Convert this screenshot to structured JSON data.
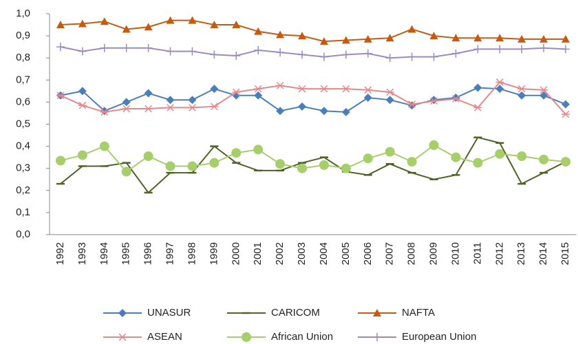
{
  "chart_data": {
    "type": "line",
    "categories": [
      "1992",
      "1993",
      "1994",
      "1995",
      "1996",
      "1997",
      "1998",
      "1999",
      "2000",
      "2001",
      "2002",
      "2003",
      "2004",
      "2005",
      "2006",
      "2007",
      "2008",
      "2009",
      "2010",
      "2011",
      "2012",
      "2013",
      "2014",
      "2015"
    ],
    "ylim": [
      0,
      1
    ],
    "yticks": [
      {
        "value": 0,
        "label": "0,0"
      },
      {
        "value": 0.1,
        "label": "0,1"
      },
      {
        "value": 0.2,
        "label": "0,2"
      },
      {
        "value": 0.3,
        "label": "0,3"
      },
      {
        "value": 0.4,
        "label": "0,4"
      },
      {
        "value": 0.5,
        "label": "0,5"
      },
      {
        "value": 0.6,
        "label": "0,6"
      },
      {
        "value": 0.7,
        "label": "0,7"
      },
      {
        "value": 0.8,
        "label": "0,8"
      },
      {
        "value": 0.9,
        "label": "0,9"
      },
      {
        "value": 1,
        "label": "1,0"
      }
    ],
    "legend": "bottom",
    "series": [
      {
        "name": "UNASUR",
        "color": "#4a7ebb",
        "marker": "diamond",
        "values": [
          0.63,
          0.65,
          0.56,
          0.6,
          0.64,
          0.61,
          0.61,
          0.66,
          0.63,
          0.63,
          0.56,
          0.58,
          0.56,
          0.555,
          0.62,
          0.61,
          0.585,
          0.61,
          0.62,
          0.665,
          0.66,
          0.63,
          0.63,
          0.59
        ]
      },
      {
        "name": "CARICOM",
        "color": "#4f6228",
        "marker": "dash",
        "values": [
          0.23,
          0.31,
          0.31,
          0.325,
          0.19,
          0.28,
          0.28,
          0.4,
          0.325,
          0.29,
          0.29,
          0.325,
          0.35,
          0.285,
          0.27,
          0.32,
          0.28,
          0.25,
          0.27,
          0.44,
          0.415,
          0.23,
          0.28,
          0.33
        ]
      },
      {
        "name": "NAFTA",
        "color": "#c55a11",
        "marker": "triangle",
        "values": [
          0.95,
          0.955,
          0.965,
          0.93,
          0.94,
          0.97,
          0.97,
          0.95,
          0.95,
          0.92,
          0.905,
          0.9,
          0.875,
          0.88,
          0.885,
          0.89,
          0.93,
          0.9,
          0.89,
          0.89,
          0.89,
          0.885,
          0.885,
          0.885
        ]
      },
      {
        "name": "ASEAN",
        "color": "#e6888a",
        "marker": "star",
        "values": [
          0.63,
          0.585,
          0.555,
          0.57,
          0.57,
          0.575,
          0.575,
          0.58,
          0.645,
          0.66,
          0.675,
          0.66,
          0.66,
          0.66,
          0.655,
          0.645,
          0.59,
          0.605,
          0.615,
          0.575,
          0.69,
          0.66,
          0.655,
          0.545
        ]
      },
      {
        "name": "African Union",
        "color": "#a6ce6b",
        "marker": "circle",
        "values": [
          0.335,
          0.36,
          0.4,
          0.285,
          0.355,
          0.31,
          0.31,
          0.325,
          0.37,
          0.385,
          0.32,
          0.3,
          0.315,
          0.3,
          0.345,
          0.375,
          0.33,
          0.405,
          0.35,
          0.325,
          0.365,
          0.355,
          0.34,
          0.33
        ]
      },
      {
        "name": "European Union",
        "color": "#9b8ac4",
        "marker": "plus",
        "values": [
          0.85,
          0.83,
          0.845,
          0.845,
          0.845,
          0.83,
          0.83,
          0.815,
          0.81,
          0.835,
          0.825,
          0.815,
          0.805,
          0.815,
          0.82,
          0.8,
          0.805,
          0.805,
          0.82,
          0.84,
          0.84,
          0.84,
          0.845,
          0.84
        ]
      }
    ]
  }
}
